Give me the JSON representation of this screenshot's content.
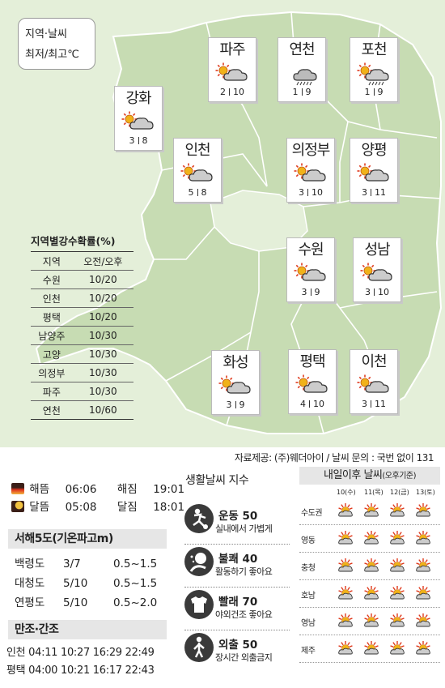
{
  "legend": {
    "line1": "지역·날씨",
    "line2": "최저/최고℃"
  },
  "cities": [
    {
      "name": "파주",
      "icon": "sun-cloud-icon",
      "low": "2",
      "high": "10"
    },
    {
      "name": "연천",
      "icon": "rain-cloud-icon",
      "low": "1",
      "high": "9"
    },
    {
      "name": "포천",
      "icon": "sun-rain-cloud-icon",
      "low": "1",
      "high": "9"
    },
    {
      "name": "강화",
      "icon": "sun-cloud-icon",
      "low": "3",
      "high": "8"
    },
    {
      "name": "인천",
      "icon": "sun-cloud-icon",
      "low": "5",
      "high": "8"
    },
    {
      "name": "의정부",
      "icon": "sun-cloud-icon",
      "low": "3",
      "high": "10"
    },
    {
      "name": "양평",
      "icon": "sun-cloud-icon",
      "low": "3",
      "high": "11"
    },
    {
      "name": "수원",
      "icon": "sun-cloud-icon",
      "low": "3",
      "high": "9"
    },
    {
      "name": "성남",
      "icon": "sun-cloud-icon",
      "low": "3",
      "high": "10"
    },
    {
      "name": "화성",
      "icon": "sun-cloud-icon",
      "low": "3",
      "high": "9"
    },
    {
      "name": "평택",
      "icon": "sun-cloud-icon",
      "low": "4",
      "high": "10"
    },
    {
      "name": "이천",
      "icon": "sun-cloud-icon",
      "low": "3",
      "high": "11"
    }
  ],
  "precip": {
    "title": "지역별강수확률(%)",
    "header": [
      "지역",
      "오전/오후"
    ],
    "rows": [
      [
        "수원",
        "10/20"
      ],
      [
        "인천",
        "10/20"
      ],
      [
        "평택",
        "10/20"
      ],
      [
        "남양주",
        "10/30"
      ],
      [
        "고양",
        "10/30"
      ],
      [
        "의정부",
        "10/30"
      ],
      [
        "파주",
        "10/30"
      ],
      [
        "연천",
        "10/60"
      ]
    ]
  },
  "source": "자료제공: (주)웨더아이 / 날씨 문의 : 국번 없이 131",
  "sun_moon": {
    "sunrise_label": "해뜸",
    "sunrise": "06:06",
    "sunset_label": "해짐",
    "sunset": "19:01",
    "moonrise_label": "달뜸",
    "moonrise": "05:08",
    "moonset_label": "달짐",
    "moonset": "18:01"
  },
  "wave": {
    "title": "서해5도(기온파고m)",
    "rows": [
      [
        "백령도",
        "3/7",
        "0.5~1.5"
      ],
      [
        "대청도",
        "5/10",
        "0.5~1.5"
      ],
      [
        "연평도",
        "5/10",
        "0.5~2.0"
      ]
    ]
  },
  "tide": {
    "title": "만조·간조",
    "rows": [
      [
        "인천",
        "04:11",
        "10:27",
        "16:29",
        "22:49"
      ],
      [
        "평택",
        "04:00",
        "10:21",
        "16:17",
        "22:43"
      ]
    ]
  },
  "life": {
    "title": "생활날씨 지수",
    "items": [
      {
        "icon": "exercise-icon",
        "name": "운동 50",
        "desc": "실내에서 가볍게"
      },
      {
        "icon": "discomfort-icon",
        "name": "불쾌 40",
        "desc": "활동하기 좋아요"
      },
      {
        "icon": "laundry-icon",
        "name": "빨래 70",
        "desc": "야외건조 좋아요"
      },
      {
        "icon": "outing-icon",
        "name": "외출 50",
        "desc": "장시간 외출금지"
      }
    ]
  },
  "tomorrow": {
    "title": "내일이후 날씨",
    "subtitle": "(오후기준)",
    "days": [
      "10(수)",
      "11(목)",
      "12(금)",
      "13(토)"
    ],
    "regions": [
      "수도권",
      "영동",
      "충청",
      "호남",
      "영남",
      "제주"
    ],
    "icon": "sun-behind-cloud-icon"
  },
  "colors": {
    "map_bg": "#e4efd9",
    "land": "#c7dcb3",
    "border": "#ffffff",
    "sun": "#f0b21a",
    "sun_ray": "#e03a1e"
  }
}
